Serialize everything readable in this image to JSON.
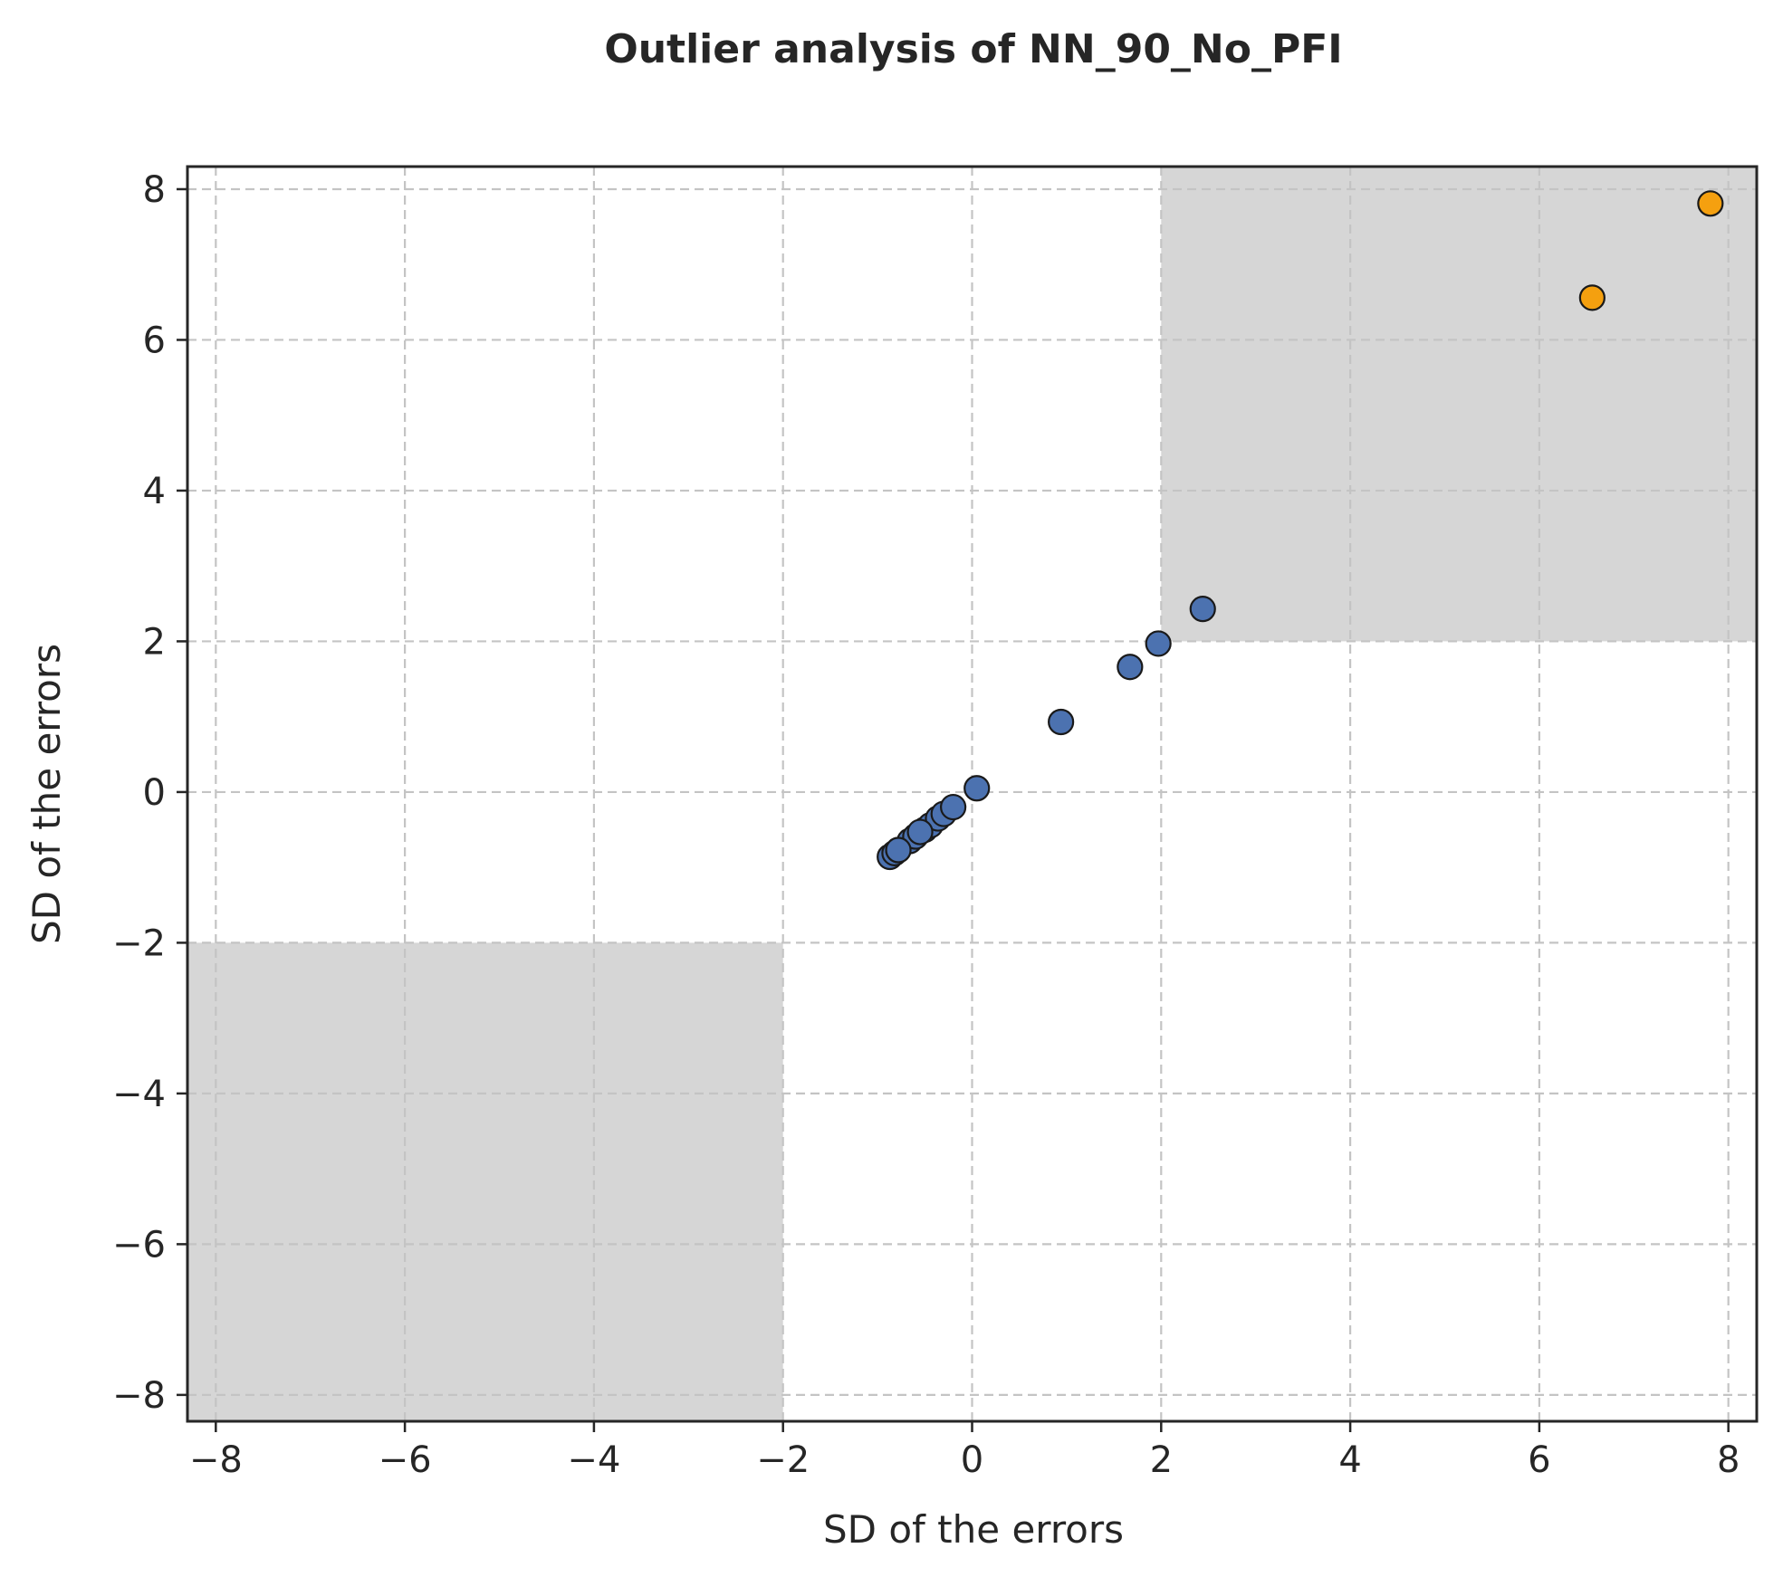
{
  "chart_data": {
    "type": "scatter",
    "title": "Outlier analysis of NN_90_No_PFI",
    "xlabel": "SD of the errors",
    "ylabel": "SD of the errors",
    "xlim": [
      -8.3,
      8.3
    ],
    "ylim": [
      -8.35,
      8.3
    ],
    "xticks": [
      -8,
      -6,
      -4,
      -2,
      0,
      2,
      4,
      6,
      8
    ],
    "yticks": [
      -8,
      -6,
      -4,
      -2,
      0,
      2,
      4,
      6,
      8
    ],
    "grid": true,
    "shaded_regions": [
      {
        "x": [
          2,
          8.3
        ],
        "y": [
          2,
          8.3
        ],
        "color": "#d6d6d6"
      },
      {
        "x": [
          -8.3,
          -2
        ],
        "y": [
          -8.35,
          -2
        ],
        "color": "#d6d6d6"
      }
    ],
    "series": [
      {
        "color": "#4c72b0",
        "points": [
          {
            "x": -0.87,
            "y": -0.86
          },
          {
            "x": -0.82,
            "y": -0.81
          },
          {
            "x": -0.78,
            "y": -0.77
          },
          {
            "x": -0.66,
            "y": -0.65
          },
          {
            "x": -0.6,
            "y": -0.59
          },
          {
            "x": -0.5,
            "y": -0.5
          },
          {
            "x": -0.44,
            "y": -0.44
          },
          {
            "x": -0.36,
            "y": -0.35
          },
          {
            "x": -0.3,
            "y": -0.29
          },
          {
            "x": -0.2,
            "y": -0.2
          },
          {
            "x": -0.55,
            "y": -0.53
          },
          {
            "x": -0.78,
            "y": -0.77
          },
          {
            "x": 0.05,
            "y": 0.05
          },
          {
            "x": 0.94,
            "y": 0.93
          },
          {
            "x": 1.67,
            "y": 1.66
          },
          {
            "x": 1.97,
            "y": 1.97
          },
          {
            "x": 2.44,
            "y": 2.43
          }
        ]
      },
      {
        "color": "#f5a00f",
        "points": [
          {
            "x": 6.56,
            "y": 6.56
          },
          {
            "x": 7.81,
            "y": 7.81
          }
        ]
      }
    ]
  }
}
